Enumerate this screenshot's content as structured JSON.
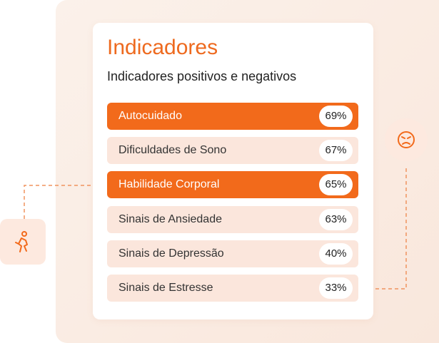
{
  "header": {
    "title": "Indicadores",
    "subtitle": "Indicadores positivos e negativos"
  },
  "items": [
    {
      "label": "Autocuidado",
      "value": "69%",
      "highlighted": true
    },
    {
      "label": "Dificuldades de Sono",
      "value": "67%",
      "highlighted": false
    },
    {
      "label": "Habilidade Corporal",
      "value": "65%",
      "highlighted": true
    },
    {
      "label": "Sinais de Ansiedade",
      "value": "63%",
      "highlighted": false
    },
    {
      "label": "Sinais de Depressão",
      "value": "40%",
      "highlighted": false
    },
    {
      "label": "Sinais de Estresse",
      "value": "33%",
      "highlighted": false
    }
  ]
}
